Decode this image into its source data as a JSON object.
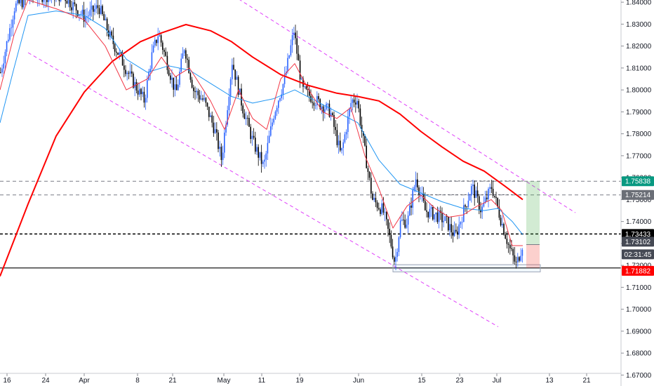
{
  "chart_data": {
    "type": "candlestick",
    "title": "",
    "x_ticks": [
      "16",
      "24",
      "Apr",
      "8",
      "21",
      "May",
      "11",
      "19",
      "Jun",
      "15",
      "23",
      "Jul",
      "13",
      "21"
    ],
    "y_ticks": [
      "1.84000",
      "1.83000",
      "1.82000",
      "1.81000",
      "1.80000",
      "1.79000",
      "1.78000",
      "1.77000",
      "1.76000",
      "1.75000",
      "1.74000",
      "1.73000",
      "1.72000",
      "1.71000",
      "1.70000",
      "1.69000",
      "1.68000",
      "1.67000"
    ],
    "ylim": [
      1.665,
      1.841
    ],
    "price_labels": {
      "target": {
        "text": "1.75838",
        "value": 1.75838,
        "color": "#089981"
      },
      "level_upper": {
        "text": "1.75214",
        "value": 1.75214,
        "color": "#6b6f77"
      },
      "level_mid": {
        "text": "1.73433",
        "value": 1.73433,
        "color": "#000000"
      },
      "last": {
        "text": "1.73102",
        "value": 1.73102,
        "color": "#454954"
      },
      "countdown": {
        "text": "02:31:45",
        "color": "#454954"
      },
      "stop": {
        "text": "1.71882",
        "value": 1.71882,
        "color": "#ff0000"
      }
    },
    "moving_averages": [
      {
        "color": "#ff0000",
        "width": 2,
        "points": [
          [
            0,
            1.715
          ],
          [
            40,
            1.748
          ],
          [
            80,
            1.779
          ],
          [
            120,
            1.799
          ],
          [
            160,
            1.813
          ],
          [
            200,
            1.822
          ],
          [
            230,
            1.826
          ],
          [
            265,
            1.8298
          ],
          [
            300,
            1.827
          ],
          [
            330,
            1.822
          ],
          [
            360,
            1.815
          ],
          [
            400,
            1.807
          ],
          [
            440,
            1.802
          ],
          [
            480,
            1.7985
          ],
          [
            510,
            1.797
          ],
          [
            540,
            1.795
          ],
          [
            570,
            1.789
          ],
          [
            600,
            1.781
          ],
          [
            630,
            1.774
          ],
          [
            660,
            1.7675
          ],
          [
            690,
            1.763
          ],
          [
            720,
            1.756
          ],
          [
            745,
            1.75
          ]
        ]
      },
      {
        "color": "#2196f3",
        "width": 1,
        "points": [
          [
            0,
            1.785
          ],
          [
            20,
            1.81
          ],
          [
            40,
            1.834
          ],
          [
            80,
            1.836
          ],
          [
            120,
            1.834
          ],
          [
            150,
            1.828
          ],
          [
            180,
            1.814
          ],
          [
            210,
            1.808
          ],
          [
            240,
            1.811
          ],
          [
            270,
            1.809
          ],
          [
            300,
            1.803
          ],
          [
            330,
            1.797
          ],
          [
            360,
            1.794
          ],
          [
            390,
            1.796
          ],
          [
            420,
            1.8
          ],
          [
            450,
            1.795
          ],
          [
            480,
            1.79
          ],
          [
            510,
            1.785
          ],
          [
            540,
            1.768
          ],
          [
            570,
            1.757
          ],
          [
            600,
            1.753
          ],
          [
            630,
            1.749
          ],
          [
            660,
            1.746
          ],
          [
            690,
            1.745
          ],
          [
            710,
            1.746
          ],
          [
            730,
            1.74
          ],
          [
            745,
            1.734
          ]
        ]
      },
      {
        "color": "#f23645",
        "width": 1,
        "points": [
          [
            0,
            1.8
          ],
          [
            20,
            1.825
          ],
          [
            40,
            1.841
          ],
          [
            80,
            1.837
          ],
          [
            120,
            1.832
          ],
          [
            150,
            1.82
          ],
          [
            180,
            1.8
          ],
          [
            210,
            1.805
          ],
          [
            230,
            1.815
          ],
          [
            250,
            1.806
          ],
          [
            270,
            1.81
          ],
          [
            300,
            1.795
          ],
          [
            320,
            1.782
          ],
          [
            340,
            1.8
          ],
          [
            360,
            1.787
          ],
          [
            380,
            1.782
          ],
          [
            400,
            1.805
          ],
          [
            420,
            1.812
          ],
          [
            440,
            1.8
          ],
          [
            460,
            1.79
          ],
          [
            480,
            1.787
          ],
          [
            500,
            1.792
          ],
          [
            520,
            1.77
          ],
          [
            540,
            1.755
          ],
          [
            560,
            1.737
          ],
          [
            580,
            1.747
          ],
          [
            600,
            1.752
          ],
          [
            620,
            1.746
          ],
          [
            640,
            1.742
          ],
          [
            660,
            1.743
          ],
          [
            680,
            1.747
          ],
          [
            700,
            1.75
          ],
          [
            715,
            1.745
          ],
          [
            730,
            1.729
          ],
          [
            745,
            1.729
          ]
        ]
      }
    ],
    "candle_path": [
      [
        0,
        1.808
      ],
      [
        20,
        1.838
      ],
      [
        45,
        1.843
      ],
      [
        90,
        1.843
      ],
      [
        120,
        1.833
      ],
      [
        140,
        1.838
      ],
      [
        155,
        1.825
      ],
      [
        175,
        1.812
      ],
      [
        190,
        1.803
      ],
      [
        205,
        1.795
      ],
      [
        215,
        1.815
      ],
      [
        225,
        1.826
      ],
      [
        235,
        1.815
      ],
      [
        250,
        1.798
      ],
      [
        262,
        1.82
      ],
      [
        275,
        1.8
      ],
      [
        290,
        1.795
      ],
      [
        305,
        1.782
      ],
      [
        315,
        1.768
      ],
      [
        330,
        1.813
      ],
      [
        345,
        1.792
      ],
      [
        360,
        1.776
      ],
      [
        375,
        1.765
      ],
      [
        390,
        1.79
      ],
      [
        405,
        1.805
      ],
      [
        418,
        1.827
      ],
      [
        430,
        1.8
      ],
      [
        450,
        1.795
      ],
      [
        470,
        1.79
      ],
      [
        485,
        1.77
      ],
      [
        500,
        1.795
      ],
      [
        508,
        1.796
      ],
      [
        520,
        1.77
      ],
      [
        530,
        1.75
      ],
      [
        545,
        1.745
      ],
      [
        555,
        1.732
      ],
      [
        562,
        1.721
      ],
      [
        570,
        1.74
      ],
      [
        580,
        1.74
      ],
      [
        592,
        1.76
      ],
      [
        605,
        1.745
      ],
      [
        620,
        1.743
      ],
      [
        635,
        1.74
      ],
      [
        648,
        1.733
      ],
      [
        660,
        1.745
      ],
      [
        672,
        1.756
      ],
      [
        685,
        1.745
      ],
      [
        700,
        1.756
      ],
      [
        712,
        1.742
      ],
      [
        725,
        1.728
      ],
      [
        735,
        1.72
      ],
      [
        745,
        1.731
      ]
    ],
    "channel_upper": [
      [
        325,
        1.8445
      ],
      [
        820,
        1.744
      ]
    ],
    "channel_lower": [
      [
        40,
        1.817
      ],
      [
        710,
        1.692
      ]
    ],
    "dashed_levels": [
      1.75838,
      1.75214,
      1.73433
    ],
    "solid_level": 1.71882,
    "support_box": {
      "x_from": 560,
      "x_to": 770,
      "y_top": 1.72,
      "y_bottom": 1.718
    },
    "range_lines": [
      {
        "x_from": 545,
        "x_to": 748,
        "value": 1.7585
      },
      {
        "x_from": 590,
        "x_to": 748,
        "value": 1.7522
      }
    ],
    "position": {
      "x": 750,
      "width": 19,
      "entry": 1.7295,
      "target": 1.75838,
      "stop": 1.71882
    }
  }
}
